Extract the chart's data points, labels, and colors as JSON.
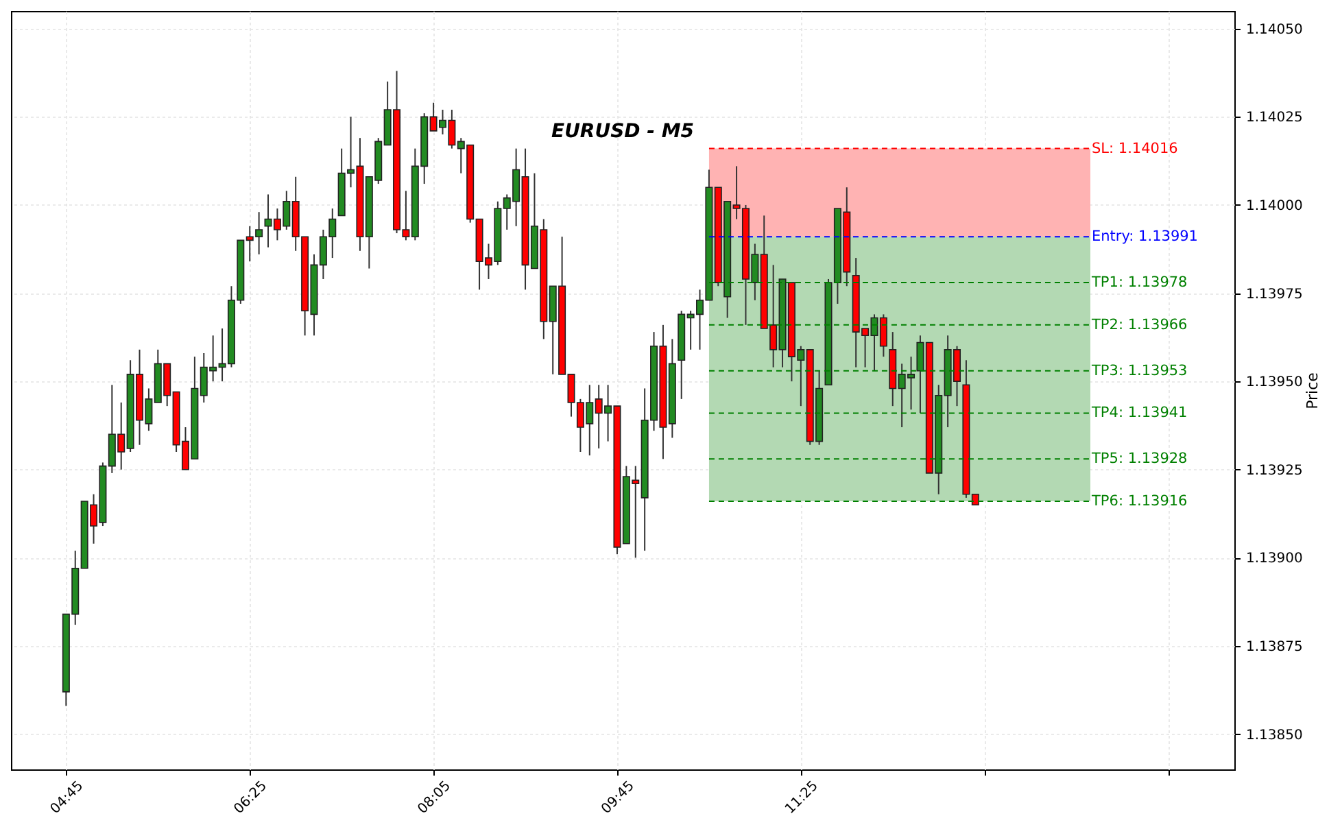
{
  "chart_data": {
    "type": "candlestick",
    "title": "EURUSD - M5",
    "ylabel": "Price",
    "x": [
      4.75,
      4.8333,
      4.9167,
      5,
      5.0833,
      5.1667,
      5.25,
      5.3333,
      5.4167,
      5.5,
      5.5833,
      5.6667,
      5.75,
      5.8333,
      5.9167,
      6,
      6.0833,
      6.1667,
      6.25,
      6.3333,
      6.4167,
      6.5,
      6.5833,
      6.6667,
      6.75,
      6.8333,
      6.9167,
      7,
      7.0833,
      7.1667,
      7.25,
      7.3333,
      7.4167,
      7.5,
      7.5833,
      7.6667,
      7.75,
      7.8333,
      7.9167,
      8,
      8.0833,
      8.1667,
      8.25,
      8.3333,
      8.4167,
      8.5,
      8.5833,
      8.6667,
      8.75,
      8.8333,
      8.9167,
      9,
      9.0833,
      9.1667,
      9.25,
      9.3333,
      9.4167,
      9.5,
      9.5833,
      9.6667,
      9.75,
      9.8333,
      9.9167,
      10,
      10.0833,
      10.1667,
      10.25,
      10.3333,
      10.4167,
      10.5,
      10.5833,
      10.6667,
      10.75,
      10.8333,
      10.9167,
      11,
      11.0833,
      11.1667,
      11.25,
      11.3333,
      11.4167,
      11.5,
      11.5833,
      11.6667,
      11.75,
      11.8333,
      11.9167,
      12,
      12.0833,
      12.1667,
      12.25,
      12.3333,
      12.4167,
      12.5,
      12.5833,
      12.6667,
      12.75,
      12.8333,
      12.9167,
      13
    ],
    "ohlc": [
      [
        1.13862,
        1.13884,
        1.13858,
        1.13884
      ],
      [
        1.13884,
        1.13902,
        1.13881,
        1.13897
      ],
      [
        1.13897,
        1.13916,
        1.13897,
        1.13916
      ],
      [
        1.13915,
        1.13918,
        1.13904,
        1.13909
      ],
      [
        1.1391,
        1.13927,
        1.13909,
        1.13926
      ],
      [
        1.13926,
        1.13949,
        1.13924,
        1.13935
      ],
      [
        1.13935,
        1.13944,
        1.13925,
        1.1393
      ],
      [
        1.13931,
        1.13956,
        1.1393,
        1.13952
      ],
      [
        1.13952,
        1.13959,
        1.13932,
        1.13939
      ],
      [
        1.13938,
        1.13948,
        1.13936,
        1.13945
      ],
      [
        1.13944,
        1.13959,
        1.13944,
        1.13955
      ],
      [
        1.13955,
        1.13955,
        1.13943,
        1.13946
      ],
      [
        1.13947,
        1.13947,
        1.1393,
        1.13932
      ],
      [
        1.13933,
        1.13937,
        1.13925,
        1.13925
      ],
      [
        1.13928,
        1.13957,
        1.13928,
        1.13948
      ],
      [
        1.13946,
        1.13958,
        1.13944,
        1.13954
      ],
      [
        1.13953,
        1.13963,
        1.1395,
        1.13954
      ],
      [
        1.13954,
        1.13965,
        1.1395,
        1.13955
      ],
      [
        1.13955,
        1.13977,
        1.13954,
        1.13973
      ],
      [
        1.13973,
        1.1399,
        1.13972,
        1.1399
      ],
      [
        1.13991,
        1.13994,
        1.13984,
        1.1399
      ],
      [
        1.13991,
        1.13998,
        1.13986,
        1.13993
      ],
      [
        1.13994,
        1.14003,
        1.13988,
        1.13996
      ],
      [
        1.13996,
        1.13999,
        1.1399,
        1.13993
      ],
      [
        1.13994,
        1.14004,
        1.13993,
        1.14001
      ],
      [
        1.14001,
        1.14008,
        1.13987,
        1.13991
      ],
      [
        1.13991,
        1.13991,
        1.13963,
        1.1397
      ],
      [
        1.13969,
        1.13986,
        1.13963,
        1.13983
      ],
      [
        1.13983,
        1.13993,
        1.13979,
        1.13991
      ],
      [
        1.13991,
        1.13999,
        1.13985,
        1.13996
      ],
      [
        1.13997,
        1.14016,
        1.13997,
        1.14009
      ],
      [
        1.14009,
        1.14025,
        1.14005,
        1.1401
      ],
      [
        1.14011,
        1.14019,
        1.13987,
        1.13991
      ],
      [
        1.13991,
        1.14008,
        1.13982,
        1.14008
      ],
      [
        1.14007,
        1.14019,
        1.14006,
        1.14018
      ],
      [
        1.14017,
        1.14035,
        1.14017,
        1.14027
      ],
      [
        1.14027,
        1.14038,
        1.13992,
        1.13993
      ],
      [
        1.13993,
        1.14004,
        1.1399,
        1.13991
      ],
      [
        1.13991,
        1.14016,
        1.1399,
        1.14011
      ],
      [
        1.14011,
        1.14026,
        1.14006,
        1.14025
      ],
      [
        1.14025,
        1.14029,
        1.14021,
        1.14021
      ],
      [
        1.14022,
        1.14027,
        1.1402,
        1.14024
      ],
      [
        1.14024,
        1.14027,
        1.14016,
        1.14017
      ],
      [
        1.14016,
        1.14019,
        1.14009,
        1.14018
      ],
      [
        1.14017,
        1.14017,
        1.13995,
        1.13996
      ],
      [
        1.13996,
        1.13996,
        1.13976,
        1.13984
      ],
      [
        1.13985,
        1.13989,
        1.13979,
        1.13983
      ],
      [
        1.13984,
        1.14001,
        1.13983,
        1.13999
      ],
      [
        1.13999,
        1.14003,
        1.13993,
        1.14002
      ],
      [
        1.14001,
        1.14016,
        1.13994,
        1.1401
      ],
      [
        1.14008,
        1.14016,
        1.13976,
        1.13983
      ],
      [
        1.13982,
        1.14009,
        1.13982,
        1.13994
      ],
      [
        1.13993,
        1.13996,
        1.13962,
        1.13967
      ],
      [
        1.13967,
        1.13977,
        1.13952,
        1.13977
      ],
      [
        1.13977,
        1.13991,
        1.13952,
        1.13952
      ],
      [
        1.13952,
        1.13952,
        1.1394,
        1.13944
      ],
      [
        1.13944,
        1.13945,
        1.1393,
        1.13937
      ],
      [
        1.13938,
        1.13949,
        1.13929,
        1.13944
      ],
      [
        1.13945,
        1.13949,
        1.13931,
        1.13941
      ],
      [
        1.13941,
        1.13949,
        1.13933,
        1.13943
      ],
      [
        1.13943,
        1.13943,
        1.13901,
        1.13903
      ],
      [
        1.13904,
        1.13926,
        1.13904,
        1.13923
      ],
      [
        1.13922,
        1.13926,
        1.139,
        1.13921
      ],
      [
        1.13917,
        1.13948,
        1.13902,
        1.13939
      ],
      [
        1.13939,
        1.13964,
        1.13936,
        1.1396
      ],
      [
        1.1396,
        1.13966,
        1.13928,
        1.13937
      ],
      [
        1.13938,
        1.13962,
        1.13934,
        1.13955
      ],
      [
        1.13956,
        1.1397,
        1.13945,
        1.13969
      ],
      [
        1.13968,
        1.1397,
        1.13959,
        1.13969
      ],
      [
        1.13969,
        1.13976,
        1.13959,
        1.13973
      ],
      [
        1.13973,
        1.1401,
        1.13973,
        1.14005
      ],
      [
        1.14005,
        1.14005,
        1.13977,
        1.13978
      ],
      [
        1.13974,
        1.14001,
        1.13968,
        1.14001
      ],
      [
        1.14,
        1.14011,
        1.13996,
        1.13999
      ],
      [
        1.13999,
        1.14,
        1.13966,
        1.13979
      ],
      [
        1.13978,
        1.13989,
        1.13973,
        1.13986
      ],
      [
        1.13986,
        1.13997,
        1.13965,
        1.13965
      ],
      [
        1.13966,
        1.13983,
        1.13954,
        1.13959
      ],
      [
        1.13959,
        1.13979,
        1.13954,
        1.13979
      ],
      [
        1.13978,
        1.13978,
        1.1395,
        1.13957
      ],
      [
        1.13956,
        1.1396,
        1.13943,
        1.13959
      ],
      [
        1.13959,
        1.13959,
        1.13932,
        1.13933
      ],
      [
        1.13933,
        1.13953,
        1.13932,
        1.13948
      ],
      [
        1.13949,
        1.13979,
        1.13949,
        1.13978
      ],
      [
        1.13978,
        1.13999,
        1.13972,
        1.13999
      ],
      [
        1.13998,
        1.14005,
        1.13977,
        1.13981
      ],
      [
        1.1398,
        1.13985,
        1.13954,
        1.13964
      ],
      [
        1.13965,
        1.13965,
        1.13954,
        1.13963
      ],
      [
        1.13963,
        1.13969,
        1.13953,
        1.13968
      ],
      [
        1.13968,
        1.13969,
        1.13957,
        1.1396
      ],
      [
        1.13959,
        1.13964,
        1.13943,
        1.13948
      ],
      [
        1.13948,
        1.13955,
        1.13937,
        1.13952
      ],
      [
        1.13951,
        1.13957,
        1.13942,
        1.13952
      ],
      [
        1.13953,
        1.13963,
        1.13941,
        1.13961
      ],
      [
        1.13961,
        1.13961,
        1.13924,
        1.13924
      ],
      [
        1.13924,
        1.13949,
        1.13918,
        1.13946
      ],
      [
        1.13946,
        1.13963,
        1.13937,
        1.13959
      ],
      [
        1.13959,
        1.1396,
        1.13943,
        1.1395
      ],
      [
        1.13949,
        1.13956,
        1.13917,
        1.13918
      ],
      [
        1.13918,
        1.13918,
        1.13915,
        1.13915
      ]
    ],
    "colors": [
      "#228b22",
      "#228b22",
      "#228b22",
      "#ff0000",
      "#228b22",
      "#228b22",
      "#ff0000",
      "#228b22",
      "#ff0000",
      "#228b22",
      "#228b22",
      "#ff0000",
      "#ff0000",
      "#ff0000",
      "#228b22",
      "#228b22",
      "#228b22",
      "#228b22",
      "#228b22",
      "#228b22",
      "#ff0000",
      "#228b22",
      "#228b22",
      "#ff0000",
      "#228b22",
      "#ff0000",
      "#ff0000",
      "#228b22",
      "#228b22",
      "#228b22",
      "#228b22",
      "#228b22",
      "#ff0000",
      "#228b22",
      "#228b22",
      "#228b22",
      "#ff0000",
      "#ff0000",
      "#228b22",
      "#228b22",
      "#ff0000",
      "#228b22",
      "#ff0000",
      "#228b22",
      "#ff0000",
      "#ff0000",
      "#ff0000",
      "#228b22",
      "#228b22",
      "#228b22",
      "#ff0000",
      "#228b22",
      "#ff0000",
      "#228b22",
      "#ff0000",
      "#ff0000",
      "#ff0000",
      "#228b22",
      "#ff0000",
      "#228b22",
      "#ff0000",
      "#228b22",
      "#ff0000",
      "#228b22",
      "#228b22",
      "#ff0000",
      "#228b22",
      "#228b22",
      "#228b22",
      "#228b22",
      "#228b22",
      "#ff0000",
      "#228b22",
      "#ff0000",
      "#ff0000",
      "#228b22",
      "#ff0000",
      "#ff0000",
      "#228b22",
      "#ff0000",
      "#228b22",
      "#ff0000",
      "#228b22",
      "#228b22",
      "#228b22",
      "#ff0000",
      "#ff0000",
      "#ff0000",
      "#228b22",
      "#ff0000",
      "#ff0000",
      "#228b22",
      "#228b22",
      "#228b22",
      "#ff0000",
      "#228b22",
      "#228b22",
      "#ff0000",
      "#ff0000",
      "#ff0000"
    ],
    "xlim": [
      4.25,
      15.35
    ],
    "xticks": [
      {
        "value": 4.75,
        "label": "04:45"
      },
      {
        "value": 6.4167,
        "label": "06:25"
      },
      {
        "value": 8.0833,
        "label": "08:05"
      },
      {
        "value": 9.75,
        "label": "09:45"
      },
      {
        "value": 11.4167,
        "label": "11:25"
      },
      {
        "value": 13.0833,
        "label": null
      },
      {
        "value": 14.75,
        "label": null
      }
    ],
    "ylim": [
      1.1384,
      1.14055
    ],
    "yticks": [
      {
        "value": 1.1385,
        "label": "1.13850"
      },
      1.13875,
      {
        "value": 1.139,
        "label": "1.13900"
      },
      1.13925,
      {
        "value": 1.1395,
        "label": "1.13950"
      },
      1.13975,
      {
        "value": 1.14,
        "label": "1.14000"
      },
      1.14025,
      {
        "value": 1.1405,
        "label": "1.14050"
      }
    ],
    "bands": [
      {
        "axis": "y",
        "from": 1.13991,
        "to": 1.14016,
        "color": "#ffb3b3"
      },
      {
        "axis": "y",
        "from": 1.13916,
        "to": 1.13991,
        "color": "#b3d9b3"
      }
    ],
    "ref_lines": [
      {
        "axis": "y",
        "value": 1.14016,
        "label": "SL: 1.14016",
        "color": "#ff0000",
        "line_style": "dashed"
      },
      {
        "axis": "y",
        "value": 1.13991,
        "label": "Entry: 1.13991",
        "color": "#0000ff",
        "line_style": "dashed"
      },
      {
        "axis": "y",
        "value": 1.13978,
        "label": "TP1: 1.13978",
        "color": "#008000",
        "line_style": "dashed"
      },
      {
        "axis": "y",
        "value": 1.13966,
        "label": "TP2: 1.13966",
        "color": "#008000",
        "line_style": "dashed"
      },
      {
        "axis": "y",
        "value": 1.13953,
        "label": "TP3: 1.13953",
        "color": "#008000",
        "line_style": "dashed"
      },
      {
        "axis": "y",
        "value": 1.13941,
        "label": "TP4: 1.13941",
        "color": "#008000",
        "line_style": "dashed"
      },
      {
        "axis": "y",
        "value": 1.13928,
        "label": "TP5: 1.13928",
        "color": "#008000",
        "line_style": "dashed"
      },
      {
        "axis": "y",
        "value": 1.13916,
        "label": "TP6: 1.13916",
        "color": "#008000",
        "line_style": "dashed"
      }
    ],
    "grid": true
  }
}
